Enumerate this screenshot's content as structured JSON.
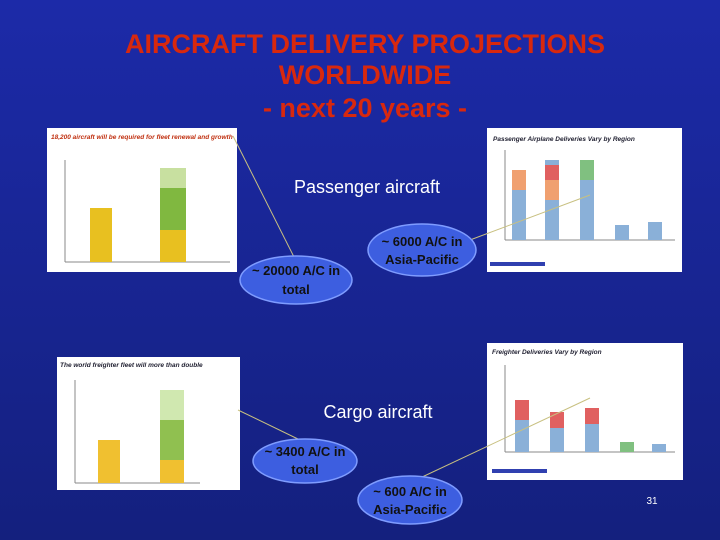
{
  "title": [
    "AIRCRAFT DELIVERY PROJECTIONS",
    "WORLDWIDE",
    "- next 20 years -"
  ],
  "passenger": {
    "label": "Passenger aircraft",
    "total_callout": [
      "~ 20000 A/C in",
      "total"
    ],
    "region_callout": [
      "~ 6000 A/C in",
      "Asia-Pacific"
    ],
    "left_inset_title": "18,200 aircraft will be required for fleet renewal and growth",
    "right_inset_title": "Passenger Airplane Deliveries Vary by Region"
  },
  "cargo": {
    "label": "Cargo aircraft",
    "total_callout": [
      "~ 3400 A/C in",
      "total"
    ],
    "region_callout": [
      "~ 600 A/C in",
      "Asia-Pacific"
    ],
    "left_inset_title": "The world freighter fleet will more than double",
    "right_inset_title": "Freighter Deliveries Vary by Region"
  },
  "page_number": "31"
}
